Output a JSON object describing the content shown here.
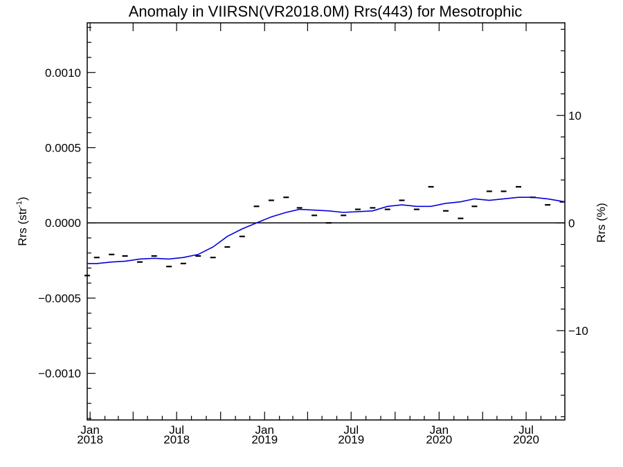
{
  "chart_data": {
    "type": "line",
    "title": "Anomaly in VIIRSN(VR2018.0M) Rrs(443) for Mesotrophic",
    "ylabel_left": "Rrs (str",
    "ylabel_left_sup": "-1",
    "ylabel_left_close": ")",
    "ylabel_right": "Rrs (%)",
    "xlim": [
      "2017-12-26",
      "2020-09-20"
    ],
    "ylim_left": [
      -0.00131,
      0.00133
    ],
    "ylim_right": [
      -18.3,
      18.6
    ],
    "grid": false,
    "zero_line": true,
    "left_ticks": [
      {
        "value": 0.001,
        "label": "0.0010"
      },
      {
        "value": 0.0005,
        "label": "0.0005"
      },
      {
        "value": 0.0,
        "label": "0.0000"
      },
      {
        "value": -0.0005,
        "label": "−0.0005"
      },
      {
        "value": -0.001,
        "label": "−0.0010"
      }
    ],
    "right_ticks": [
      {
        "value": 10,
        "label": "10"
      },
      {
        "value": 0,
        "label": "0"
      },
      {
        "value": -10,
        "label": "−10"
      }
    ],
    "x_ticks": [
      {
        "date": "2018-01-01",
        "month": "Jan",
        "year": "2018"
      },
      {
        "date": "2018-07-01",
        "month": "Jul",
        "year": "2018"
      },
      {
        "date": "2019-01-01",
        "month": "Jan",
        "year": "2019"
      },
      {
        "date": "2019-07-01",
        "month": "Jul",
        "year": "2019"
      },
      {
        "date": "2020-01-01",
        "month": "Jan",
        "year": "2020"
      },
      {
        "date": "2020-07-01",
        "month": "Jul",
        "year": "2020"
      }
    ],
    "series": [
      {
        "kind": "monthly_anomaly_markers",
        "color": "#000000",
        "x": [
          "2017-12-26",
          "2018-01-15",
          "2018-02-15",
          "2018-03-15",
          "2018-04-15",
          "2018-05-15",
          "2018-06-15",
          "2018-07-15",
          "2018-08-15",
          "2018-09-15",
          "2018-10-15",
          "2018-11-15",
          "2018-12-15",
          "2019-01-15",
          "2019-02-15",
          "2019-03-15",
          "2019-04-15",
          "2019-05-15",
          "2019-06-15",
          "2019-07-15",
          "2019-08-15",
          "2019-09-15",
          "2019-10-15",
          "2019-11-15",
          "2019-12-15",
          "2020-01-15",
          "2020-02-15",
          "2020-03-15",
          "2020-04-15",
          "2020-05-15",
          "2020-06-15",
          "2020-07-15",
          "2020-08-15",
          "2020-09-15"
        ],
        "y": [
          -0.00035,
          -0.00023,
          -0.00021,
          -0.00022,
          -0.00026,
          -0.00022,
          -0.00029,
          -0.00027,
          -0.00022,
          -0.00023,
          -0.00016,
          -9e-05,
          0.00011,
          0.00015,
          0.00017,
          0.0001,
          5e-05,
          0.0,
          5e-05,
          9e-05,
          0.0001,
          9e-05,
          0.00015,
          9e-05,
          0.00024,
          8e-05,
          3e-05,
          0.00011,
          0.00021,
          0.00021,
          0.00024,
          0.00017,
          0.00012,
          0.00014
        ]
      },
      {
        "kind": "smoothed_line",
        "color": "#0000dd",
        "x": [
          "2017-12-26",
          "2018-01-15",
          "2018-02-15",
          "2018-03-15",
          "2018-04-15",
          "2018-05-15",
          "2018-06-15",
          "2018-07-15",
          "2018-08-15",
          "2018-09-15",
          "2018-10-15",
          "2018-11-15",
          "2018-12-15",
          "2019-01-15",
          "2019-02-15",
          "2019-03-15",
          "2019-04-15",
          "2019-05-15",
          "2019-06-15",
          "2019-07-15",
          "2019-08-15",
          "2019-09-15",
          "2019-10-15",
          "2019-11-15",
          "2019-12-15",
          "2020-01-15",
          "2020-02-15",
          "2020-03-15",
          "2020-04-15",
          "2020-05-15",
          "2020-06-15",
          "2020-07-15",
          "2020-08-15",
          "2020-09-20"
        ],
        "y": [
          -0.00027,
          -0.00027,
          -0.00026,
          -0.000255,
          -0.00024,
          -0.000235,
          -0.00024,
          -0.00023,
          -0.00021,
          -0.00016,
          -9e-05,
          -4e-05,
          0.0,
          4e-05,
          7e-05,
          9e-05,
          8.5e-05,
          8e-05,
          7e-05,
          7.5e-05,
          8e-05,
          0.00011,
          0.00012,
          0.00011,
          0.00011,
          0.00013,
          0.00014,
          0.00016,
          0.00015,
          0.00016,
          0.00017,
          0.00017,
          0.00016,
          0.00014
        ]
      }
    ]
  }
}
